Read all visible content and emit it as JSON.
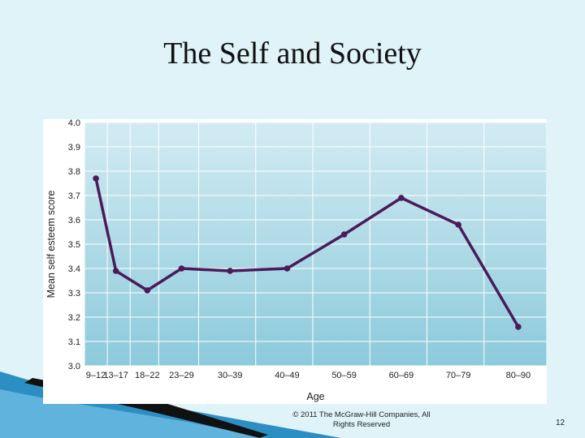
{
  "slide": {
    "title": "The Self and Society",
    "footer": "© 2011 The McGraw-Hill Companies, All Rights Reserved",
    "page_number": "12"
  },
  "colors": {
    "background": "#dff3f8",
    "plot_top": "#d2ebf2",
    "plot_bottom": "#8ccadb",
    "line": "#4b1a5a",
    "deco_blue": "#2c8fc4",
    "deco_black": "#111111"
  },
  "chart_data": {
    "type": "line",
    "categories": [
      "9–12",
      "13–17",
      "18–22",
      "23–29",
      "30–39",
      "40–49",
      "50–59",
      "60–69",
      "70–79",
      "80–90"
    ],
    "series": [
      {
        "values": [
          3.77,
          3.39,
          3.31,
          3.4,
          3.39,
          3.4,
          3.54,
          3.69,
          3.58,
          3.16
        ]
      }
    ],
    "x_positions": [
      11,
      14.5,
      20,
      26,
      34.5,
      44.5,
      54.5,
      64.5,
      74.5,
      85
    ],
    "x_boundaries": [
      9,
      13,
      17,
      22,
      29,
      39,
      49,
      59,
      69,
      79,
      90
    ],
    "xlabel": "Age",
    "ylabel": "Mean self esteem score",
    "ylim": [
      3.0,
      4.0
    ],
    "yticks": [
      "3.0",
      "3.1",
      "3.2",
      "3.3",
      "3.4",
      "3.5",
      "3.6",
      "3.7",
      "3.8",
      "3.9",
      "4.0"
    ],
    "grid": true
  }
}
